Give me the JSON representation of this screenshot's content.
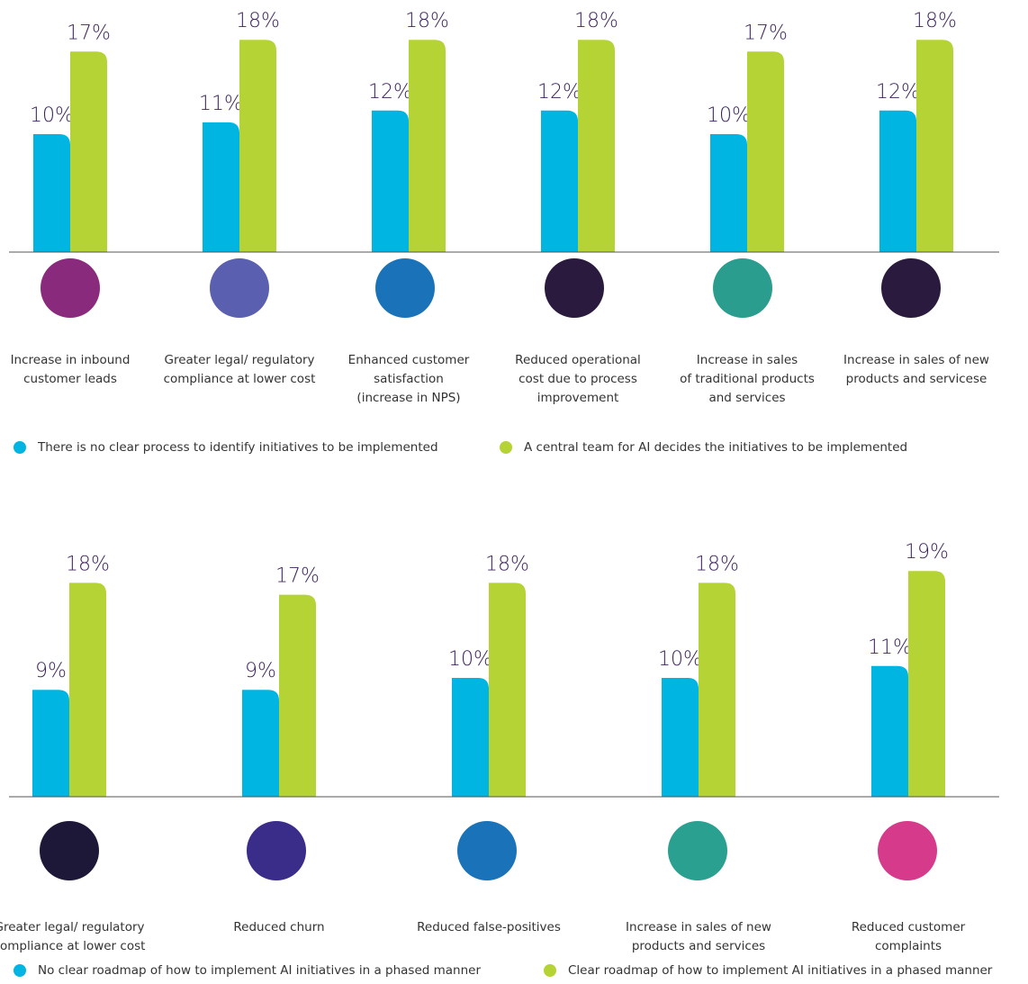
{
  "chart_data": [
    {
      "type": "bar",
      "categories": [
        [
          "Increase in inbound",
          "customer leads"
        ],
        [
          "Greater legal/ regulatory",
          "compliance at lower cost"
        ],
        [
          "Enhanced customer",
          "satisfaction",
          "(increase in NPS)"
        ],
        [
          "Reduced operational",
          "cost due to process",
          "improvement"
        ],
        [
          "Increase in sales",
          "of traditional products",
          "and services"
        ],
        [
          "Increase in sales of new",
          "products and servicese"
        ]
      ],
      "series": [
        {
          "name": "There is no clear process to identify initiatives to be implemented",
          "color": "#00b5e2",
          "values": [
            10,
            11,
            12,
            12,
            10,
            12
          ],
          "value_labels": [
            "10%",
            "11%",
            "12%",
            "12%",
            "10%",
            "12%"
          ]
        },
        {
          "name": "A central team for AI decides the initiatives to be implemented",
          "color": "#b5d334",
          "values": [
            17,
            18,
            18,
            18,
            17,
            18
          ],
          "value_labels": [
            "17%",
            "18%",
            "18%",
            "18%",
            "17%",
            "18%"
          ]
        }
      ],
      "ylim": [
        0,
        20
      ]
    },
    {
      "type": "bar",
      "categories": [
        [
          "Greater legal/ regulatory",
          "compliance at lower cost"
        ],
        [
          "Reduced churn"
        ],
        [
          "Reduced false-positives"
        ],
        [
          "Increase in sales of new",
          "products and services"
        ],
        [
          "Reduced customer",
          "complaints"
        ]
      ],
      "series": [
        {
          "name": "No clear roadmap of how to implement AI initiatives in a phased manner",
          "color": "#00b5e2",
          "values": [
            9,
            9,
            10,
            10,
            11
          ],
          "value_labels": [
            "9%",
            "9%",
            "10%",
            "10%",
            "11%"
          ]
        },
        {
          "name": "Clear roadmap of how to implement AI initiatives in a phased manner",
          "color": "#b5d334",
          "values": [
            18,
            17,
            18,
            18,
            19
          ],
          "value_labels": [
            "18%",
            "17%",
            "18%",
            "18%",
            "19%"
          ]
        }
      ],
      "ylim": [
        0,
        20
      ]
    }
  ]
}
